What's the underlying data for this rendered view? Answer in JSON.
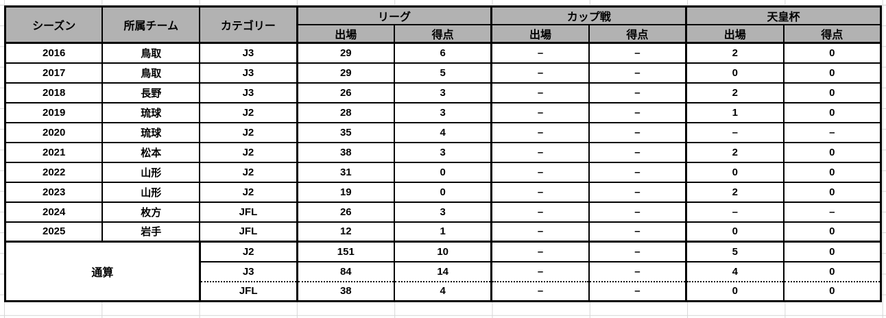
{
  "table": {
    "columns": {
      "season": "シーズン",
      "team": "所属チーム",
      "category": "カテゴリー",
      "groups": [
        {
          "label": "リーグ",
          "sub": [
            "出場",
            "得点"
          ]
        },
        {
          "label": "カップ戦",
          "sub": [
            "出場",
            "得点"
          ]
        },
        {
          "label": "天皇杯",
          "sub": [
            "出場",
            "得点"
          ]
        }
      ]
    },
    "rows": [
      [
        "2016",
        "鳥取",
        "J3",
        "29",
        "6",
        "–",
        "–",
        "2",
        "0"
      ],
      [
        "2017",
        "鳥取",
        "J3",
        "29",
        "5",
        "–",
        "–",
        "0",
        "0"
      ],
      [
        "2018",
        "長野",
        "J3",
        "26",
        "3",
        "–",
        "–",
        "2",
        "0"
      ],
      [
        "2019",
        "琉球",
        "J2",
        "28",
        "3",
        "–",
        "–",
        "1",
        "0"
      ],
      [
        "2020",
        "琉球",
        "J2",
        "35",
        "4",
        "–",
        "–",
        "–",
        "–"
      ],
      [
        "2021",
        "松本",
        "J2",
        "38",
        "3",
        "–",
        "–",
        "2",
        "0"
      ],
      [
        "2022",
        "山形",
        "J2",
        "31",
        "0",
        "–",
        "–",
        "0",
        "0"
      ],
      [
        "2023",
        "山形",
        "J2",
        "19",
        "0",
        "–",
        "–",
        "2",
        "0"
      ],
      [
        "2024",
        "枚方",
        "JFL",
        "26",
        "3",
        "–",
        "–",
        "–",
        "–"
      ],
      [
        "2025",
        "岩手",
        "JFL",
        "12",
        "1",
        "–",
        "–",
        "0",
        "0"
      ]
    ],
    "totals_label": "通算",
    "totals": [
      [
        "J2",
        "151",
        "10",
        "–",
        "–",
        "5",
        "0"
      ],
      [
        "J3",
        "84",
        "14",
        "–",
        "–",
        "4",
        "0"
      ],
      [
        "JFL",
        "38",
        "4",
        "–",
        "–",
        "0",
        "0"
      ]
    ]
  },
  "colors": {
    "header_bg": "#b2b2b2",
    "border": "#000000",
    "gridline": "#d6d6d6"
  }
}
